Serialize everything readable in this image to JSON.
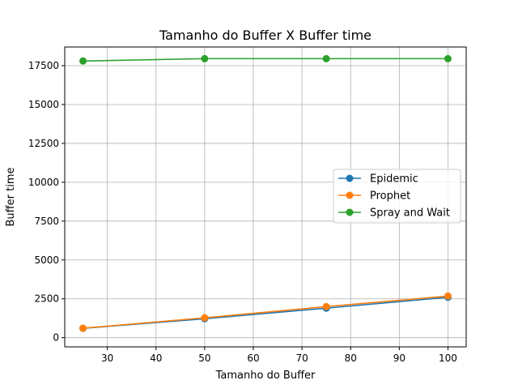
{
  "chart_data": {
    "type": "line",
    "title": "Tamanho do Buffer X Buffer time",
    "xlabel": "Tamanho do Buffer",
    "ylabel": "Buffer time",
    "xlim": [
      21.25,
      103.75
    ],
    "ylim": [
      -590,
      18700
    ],
    "xticks": [
      30,
      40,
      50,
      60,
      70,
      80,
      90,
      100
    ],
    "yticks": [
      0,
      2500,
      5000,
      7500,
      10000,
      12500,
      15000,
      17500
    ],
    "grid": true,
    "legend_position": "center right",
    "x": [
      25,
      50,
      75,
      100
    ],
    "series": [
      {
        "name": "Epidemic",
        "color": "#1f77b4",
        "values": [
          600,
          1220,
          1900,
          2600
        ]
      },
      {
        "name": "Prophet",
        "color": "#ff7f0e",
        "values": [
          610,
          1280,
          2000,
          2680
        ]
      },
      {
        "name": "Spray and Wait",
        "color": "#2ca02c",
        "values": [
          17800,
          17950,
          17950,
          17950
        ]
      }
    ]
  }
}
